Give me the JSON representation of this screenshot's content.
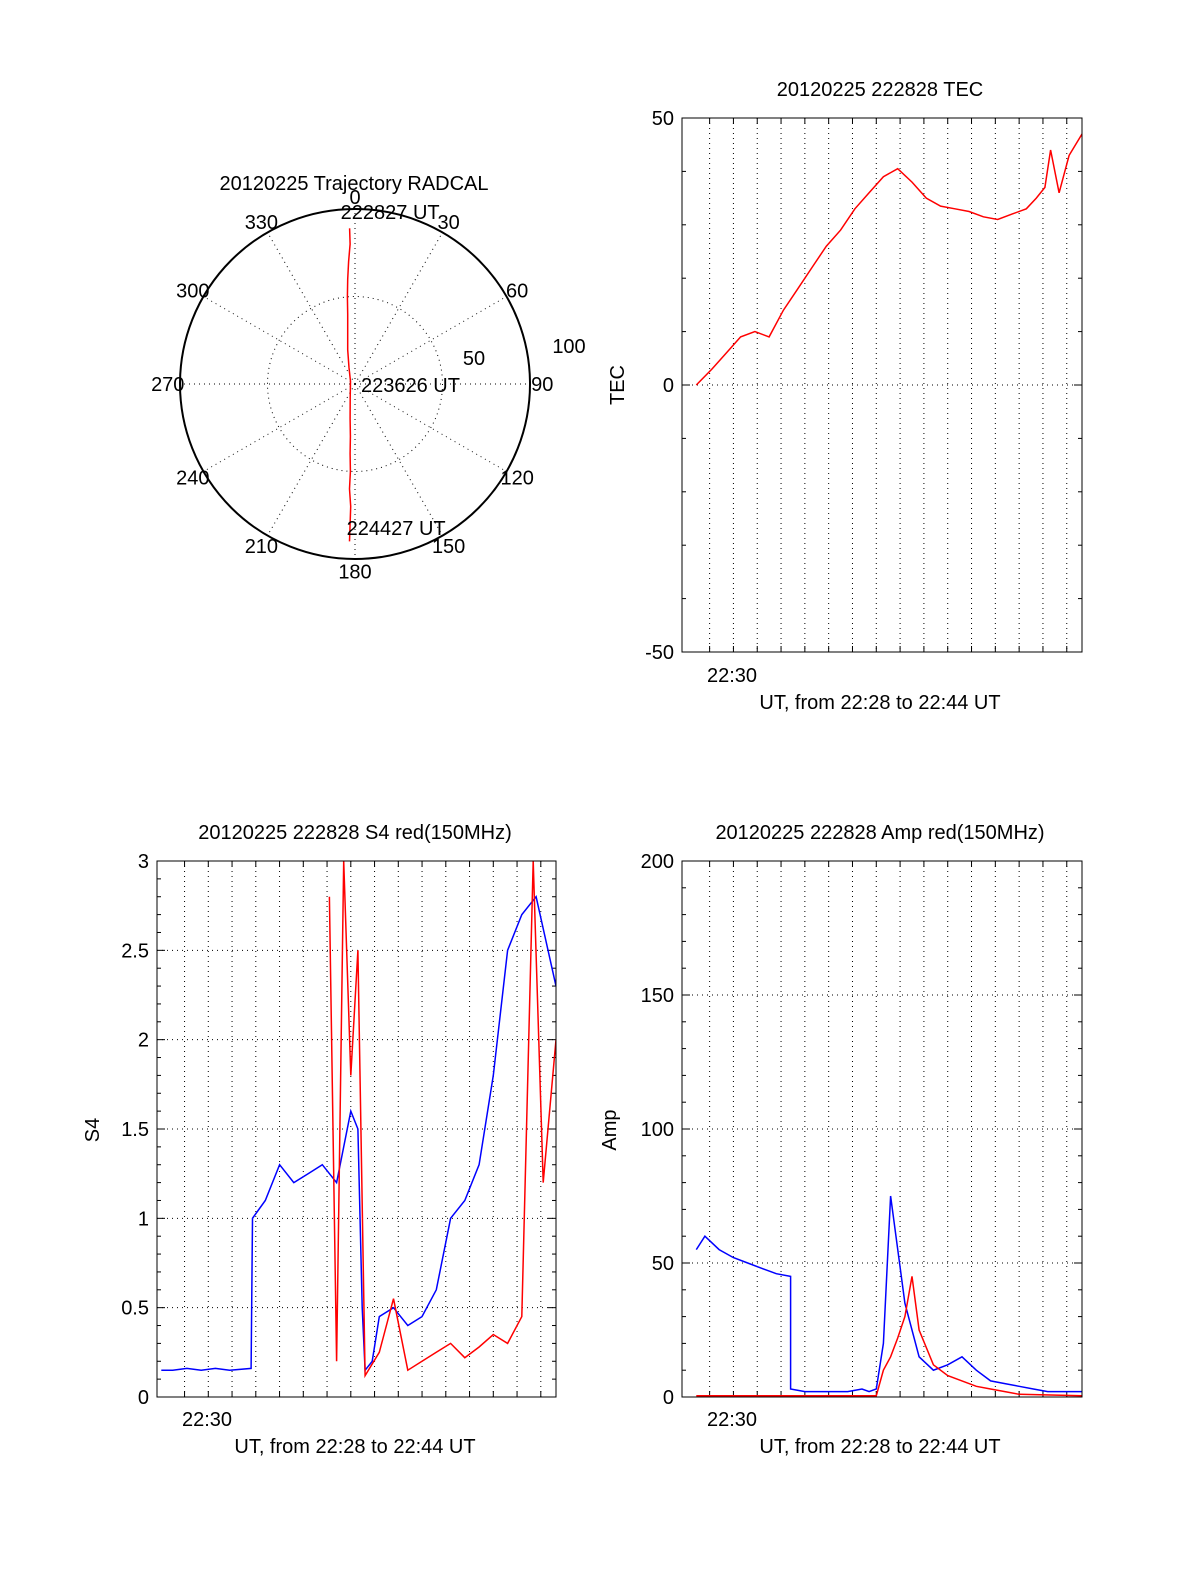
{
  "colors": {
    "red": "#ff0000",
    "blue": "#0000ff",
    "axis": "#000000"
  },
  "chart_data": [
    {
      "id": "trajectory",
      "type": "polar",
      "title": "20120225 Trajectory RADCAL",
      "angle_labels": [
        "0",
        "30",
        "60",
        "90",
        "120",
        "150",
        "180",
        "210",
        "240",
        "270",
        "300",
        "330"
      ],
      "radius_labels": [
        "50",
        "100"
      ],
      "rlim": [
        0,
        100
      ],
      "grid": true,
      "track_color": "red",
      "track": [
        {
          "az": 358,
          "zen": 89
        },
        {
          "az": 358,
          "zen": 80
        },
        {
          "az": 357,
          "zen": 70
        },
        {
          "az": 356,
          "zen": 60
        },
        {
          "az": 355,
          "zen": 50
        },
        {
          "az": 354,
          "zen": 40
        },
        {
          "az": 352,
          "zen": 30
        },
        {
          "az": 348,
          "zen": 20
        },
        {
          "az": 340,
          "zen": 10
        },
        {
          "az": 300,
          "zen": 3
        },
        {
          "az": 200,
          "zen": 8
        },
        {
          "az": 188,
          "zen": 20
        },
        {
          "az": 185,
          "zen": 30
        },
        {
          "az": 184,
          "zen": 40
        },
        {
          "az": 183,
          "zen": 50
        },
        {
          "az": 183,
          "zen": 60
        },
        {
          "az": 182,
          "zen": 70
        },
        {
          "az": 182,
          "zen": 80
        },
        {
          "az": 182,
          "zen": 90
        }
      ],
      "annotations": [
        {
          "text": "222827 UT",
          "az": 357,
          "zen": 91
        },
        {
          "text": "223626 UT",
          "az": 0,
          "zen": 0
        },
        {
          "text": "224427 UT",
          "az": 183,
          "zen": 91
        }
      ]
    },
    {
      "id": "tec",
      "type": "line",
      "title": "20120225 222828 TEC",
      "ylabel": "TEC",
      "xlabel": "UT, from 22:28 to 22:44 UT",
      "xlim": [
        22.464,
        22.744
      ],
      "ylim": [
        -50,
        50
      ],
      "x_tick_label": "22:30",
      "y_ticks": [
        "-50",
        "0",
        "50"
      ],
      "grid": true,
      "series": [
        {
          "color": "red",
          "x": [
            22.474,
            22.485,
            22.495,
            22.505,
            22.515,
            22.525,
            22.535,
            22.545,
            22.555,
            22.565,
            22.575,
            22.585,
            22.595,
            22.605,
            22.615,
            22.625,
            22.635,
            22.645,
            22.655,
            22.665,
            22.675,
            22.685,
            22.695,
            22.705,
            22.712,
            22.718,
            22.722,
            22.728,
            22.735,
            22.744
          ],
          "y": [
            0,
            3,
            6,
            9,
            10,
            9,
            14,
            18,
            22,
            26,
            29,
            33,
            36,
            39,
            40.5,
            38,
            35,
            33.5,
            33,
            32.5,
            31.5,
            31,
            32,
            33,
            35,
            37,
            44,
            36,
            43,
            47
          ]
        }
      ]
    },
    {
      "id": "s4",
      "type": "line",
      "title": "20120225 222828 S4 red(150MHz)",
      "ylabel": "S4",
      "xlabel": "UT, from 22:28 to 22:44 UT",
      "xlim": [
        22.464,
        22.744
      ],
      "ylim": [
        0,
        3
      ],
      "x_tick_label": "22:30",
      "y_ticks": [
        "0",
        "0.5",
        "1",
        "1.5",
        "2",
        "2.5",
        "3"
      ],
      "grid": true,
      "series": [
        {
          "color": "blue",
          "x": [
            22.467,
            22.475,
            22.485,
            22.495,
            22.505,
            22.515,
            22.53,
            22.531,
            22.54,
            22.55,
            22.56,
            22.57,
            22.58,
            22.59,
            22.595,
            22.6,
            22.605,
            22.608,
            22.61,
            22.615,
            22.62,
            22.63,
            22.64,
            22.65,
            22.66,
            22.67,
            22.68,
            22.69,
            22.7,
            22.71,
            22.72,
            22.73,
            22.744
          ],
          "y": [
            0.15,
            0.15,
            0.16,
            0.15,
            0.16,
            0.15,
            0.16,
            1.0,
            1.1,
            1.3,
            1.2,
            1.25,
            1.3,
            1.2,
            1.4,
            1.6,
            1.5,
            0.5,
            0.15,
            0.2,
            0.45,
            0.5,
            0.4,
            0.45,
            0.6,
            1.0,
            1.1,
            1.3,
            1.8,
            2.5,
            2.7,
            2.8,
            2.3
          ]
        },
        {
          "color": "red",
          "x": [
            22.585,
            22.59,
            22.595,
            22.6,
            22.605,
            22.61,
            22.62,
            22.63,
            22.64,
            22.65,
            22.66,
            22.67,
            22.68,
            22.69,
            22.7,
            22.71,
            22.72,
            22.728,
            22.735,
            22.744
          ],
          "y": [
            2.8,
            0.2,
            3.0,
            1.8,
            2.5,
            0.12,
            0.25,
            0.55,
            0.15,
            0.2,
            0.25,
            0.3,
            0.22,
            0.28,
            0.35,
            0.3,
            0.45,
            3.0,
            1.2,
            2.0
          ]
        }
      ]
    },
    {
      "id": "amp",
      "type": "line",
      "title": "20120225 222828 Amp red(150MHz)",
      "ylabel": "Amp",
      "xlabel": "UT, from 22:28 to 22:44 UT",
      "xlim": [
        22.464,
        22.744
      ],
      "ylim": [
        0,
        200
      ],
      "x_tick_label": "22:30",
      "y_ticks": [
        "0",
        "50",
        "100",
        "150",
        "200"
      ],
      "grid": true,
      "series": [
        {
          "color": "blue",
          "x": [
            22.474,
            22.48,
            22.49,
            22.5,
            22.51,
            22.52,
            22.53,
            22.54,
            22.54,
            22.55,
            22.56,
            22.57,
            22.58,
            22.59,
            22.595,
            22.6,
            22.605,
            22.61,
            22.62,
            22.63,
            22.64,
            22.65,
            22.66,
            22.67,
            22.68,
            22.69,
            22.7,
            22.71,
            22.72,
            22.73,
            22.744
          ],
          "y": [
            55,
            60,
            55,
            52,
            50,
            48,
            46,
            45,
            3,
            2,
            2,
            2,
            2,
            3,
            2,
            3,
            20,
            75,
            35,
            15,
            10,
            12,
            15,
            10,
            6,
            5,
            4,
            3,
            2,
            2,
            2
          ]
        },
        {
          "color": "red",
          "x": [
            22.474,
            22.54,
            22.6,
            22.605,
            22.61,
            22.615,
            22.62,
            22.625,
            22.63,
            22.64,
            22.65,
            22.66,
            22.67,
            22.68,
            22.69,
            22.7,
            22.744
          ],
          "y": [
            0.5,
            0.5,
            0.5,
            10,
            15,
            22,
            30,
            45,
            25,
            12,
            8,
            6,
            4,
            3,
            2,
            1,
            0.5
          ]
        }
      ]
    }
  ]
}
